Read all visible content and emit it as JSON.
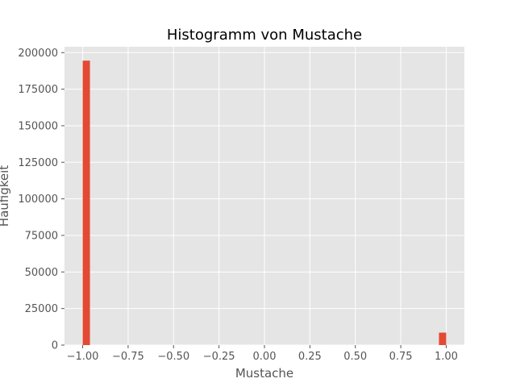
{
  "chart_data": {
    "type": "bar",
    "title": "Histogramm von Mustache",
    "xlabel": "Mustache",
    "ylabel": "Häufigkeit",
    "xlim": [
      -1.1,
      1.1
    ],
    "ylim": [
      0,
      204000
    ],
    "x_ticks": [
      -1.0,
      -0.75,
      -0.5,
      -0.25,
      0.0,
      0.25,
      0.5,
      0.75,
      1.0
    ],
    "x_tick_labels": [
      "−1.00",
      "−0.75",
      "−0.50",
      "−0.25",
      "0.00",
      "0.25",
      "0.50",
      "0.75",
      "1.00"
    ],
    "y_ticks": [
      0,
      25000,
      50000,
      75000,
      100000,
      125000,
      150000,
      175000,
      200000
    ],
    "y_tick_labels": [
      "0",
      "25000",
      "50000",
      "75000",
      "100000",
      "125000",
      "150000",
      "175000",
      "200000"
    ],
    "bins": [
      {
        "start": -1.0,
        "end": -0.96,
        "count": 194500
      },
      {
        "start": 0.96,
        "end": 1.0,
        "count": 8500
      }
    ],
    "grid": true,
    "bar_color": "#E24A33",
    "background_color": "#E5E5E5",
    "grid_color": "#FFFFFF",
    "tick_color": "#555555",
    "text_color": "#000000"
  }
}
